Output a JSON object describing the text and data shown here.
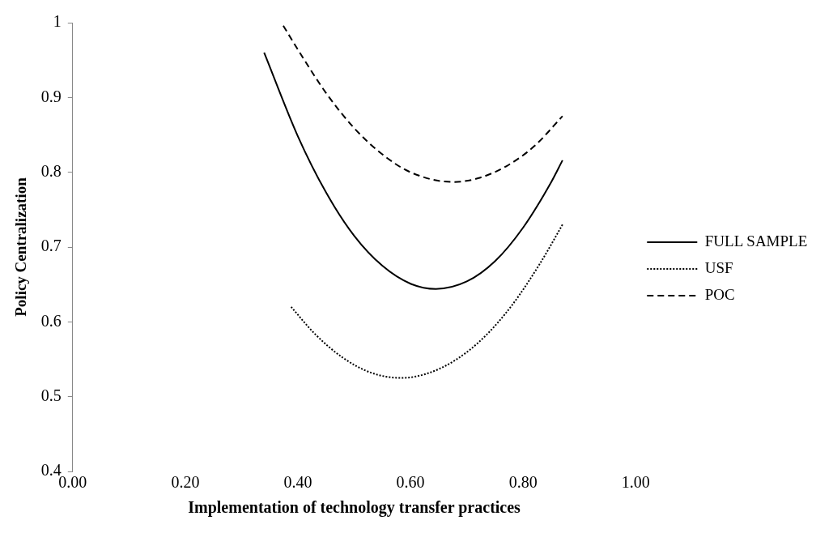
{
  "chart_data": {
    "type": "line",
    "xlabel": "Implementation of technology transfer practices",
    "ylabel": "Policy Centralization",
    "xlim": [
      0,
      1
    ],
    "xticks": [
      {
        "value": 0,
        "label": "0.00"
      },
      {
        "value": 0.2,
        "label": "0.20"
      },
      {
        "value": 0.4,
        "label": "0.40"
      },
      {
        "value": 0.6,
        "label": "0.60"
      },
      {
        "value": 0.8,
        "label": "0.80"
      },
      {
        "value": 1,
        "label": "1.00"
      }
    ],
    "ylim": [
      0.4,
      1
    ],
    "yticks": [
      0.4,
      0.5,
      0.6,
      0.7,
      0.8,
      0.9,
      1
    ],
    "grid": false,
    "legend": "right",
    "marker": "none",
    "series": [
      {
        "name": "FULL SAMPLE",
        "color": "#000000",
        "line_style": "solid",
        "x": [
          0.34,
          0.4,
          0.45,
          0.5,
          0.55,
          0.6,
          0.645,
          0.7,
          0.75,
          0.8,
          0.85,
          0.87
        ],
        "values": [
          0.96,
          0.848,
          0.773,
          0.715,
          0.675,
          0.651,
          0.644,
          0.654,
          0.681,
          0.726,
          0.787,
          0.816
        ]
      },
      {
        "name": "USF",
        "color": "#000000",
        "line_style": "dotted",
        "x": [
          0.388,
          0.43,
          0.48,
          0.53,
          0.583,
          0.63,
          0.68,
          0.73,
          0.78,
          0.83,
          0.87
        ],
        "values": [
          0.62,
          0.584,
          0.552,
          0.532,
          0.525,
          0.531,
          0.549,
          0.579,
          0.622,
          0.678,
          0.73
        ]
      },
      {
        "name": "POC",
        "color": "#000000",
        "line_style": "dashed",
        "x": [
          0.374,
          0.4,
          0.45,
          0.5,
          0.55,
          0.6,
          0.676,
          0.72,
          0.77,
          0.82,
          0.87
        ],
        "values": [
          0.996,
          0.964,
          0.906,
          0.859,
          0.824,
          0.8,
          0.787,
          0.792,
          0.808,
          0.835,
          0.875
        ]
      }
    ]
  }
}
